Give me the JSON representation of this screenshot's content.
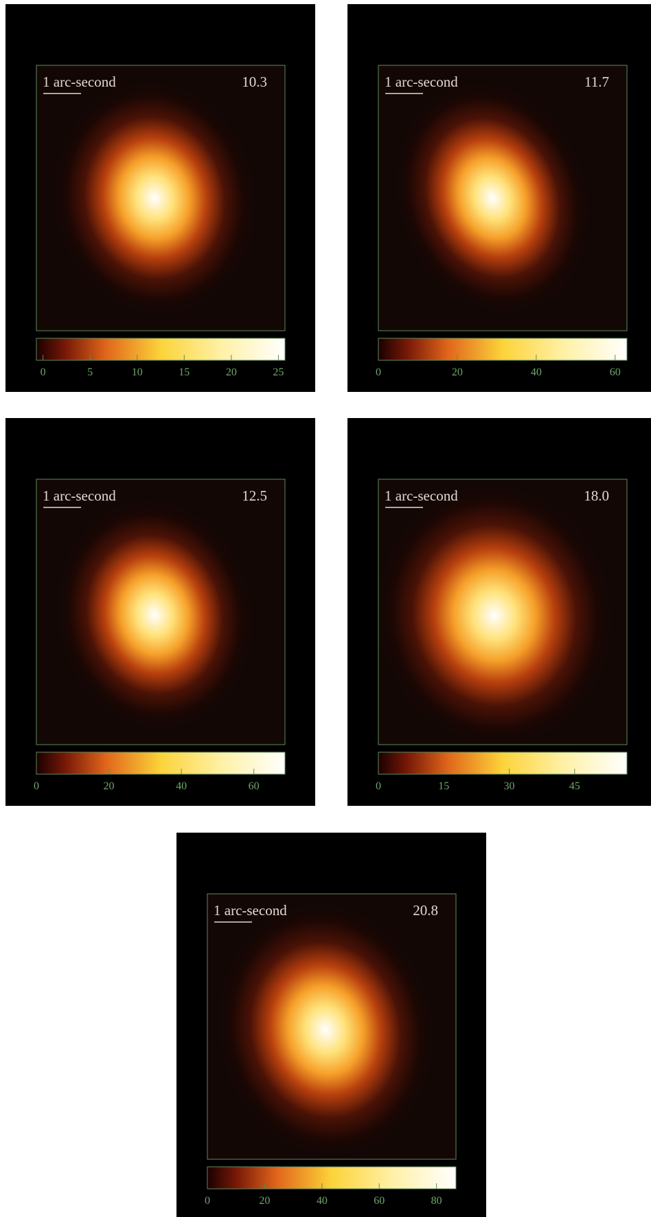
{
  "panels": [
    {
      "scale_label": "1 arc-second",
      "value": "10.3",
      "colorbar": {
        "lim": [
          -0.7,
          25.7
        ],
        "ticks": [
          0,
          5,
          10,
          15,
          20,
          25
        ]
      }
    },
    {
      "scale_label": "1 arc-second",
      "value": "11.7",
      "colorbar": {
        "lim": [
          0,
          63
        ],
        "ticks": [
          0,
          20,
          40,
          60
        ]
      }
    },
    {
      "scale_label": "1 arc-second",
      "value": "12.5",
      "colorbar": {
        "lim": [
          0,
          68.6
        ],
        "ticks": [
          0,
          20,
          40,
          60
        ]
      }
    },
    {
      "scale_label": "1 arc-second",
      "value": "18.0",
      "colorbar": {
        "lim": [
          0,
          57
        ],
        "ticks": [
          0,
          15,
          30,
          45
        ]
      }
    },
    {
      "scale_label": "1 arc-second",
      "value": "20.8",
      "colorbar": {
        "lim": [
          0,
          86.8
        ],
        "ticks": [
          0,
          20,
          40,
          60,
          80
        ]
      }
    }
  ]
}
